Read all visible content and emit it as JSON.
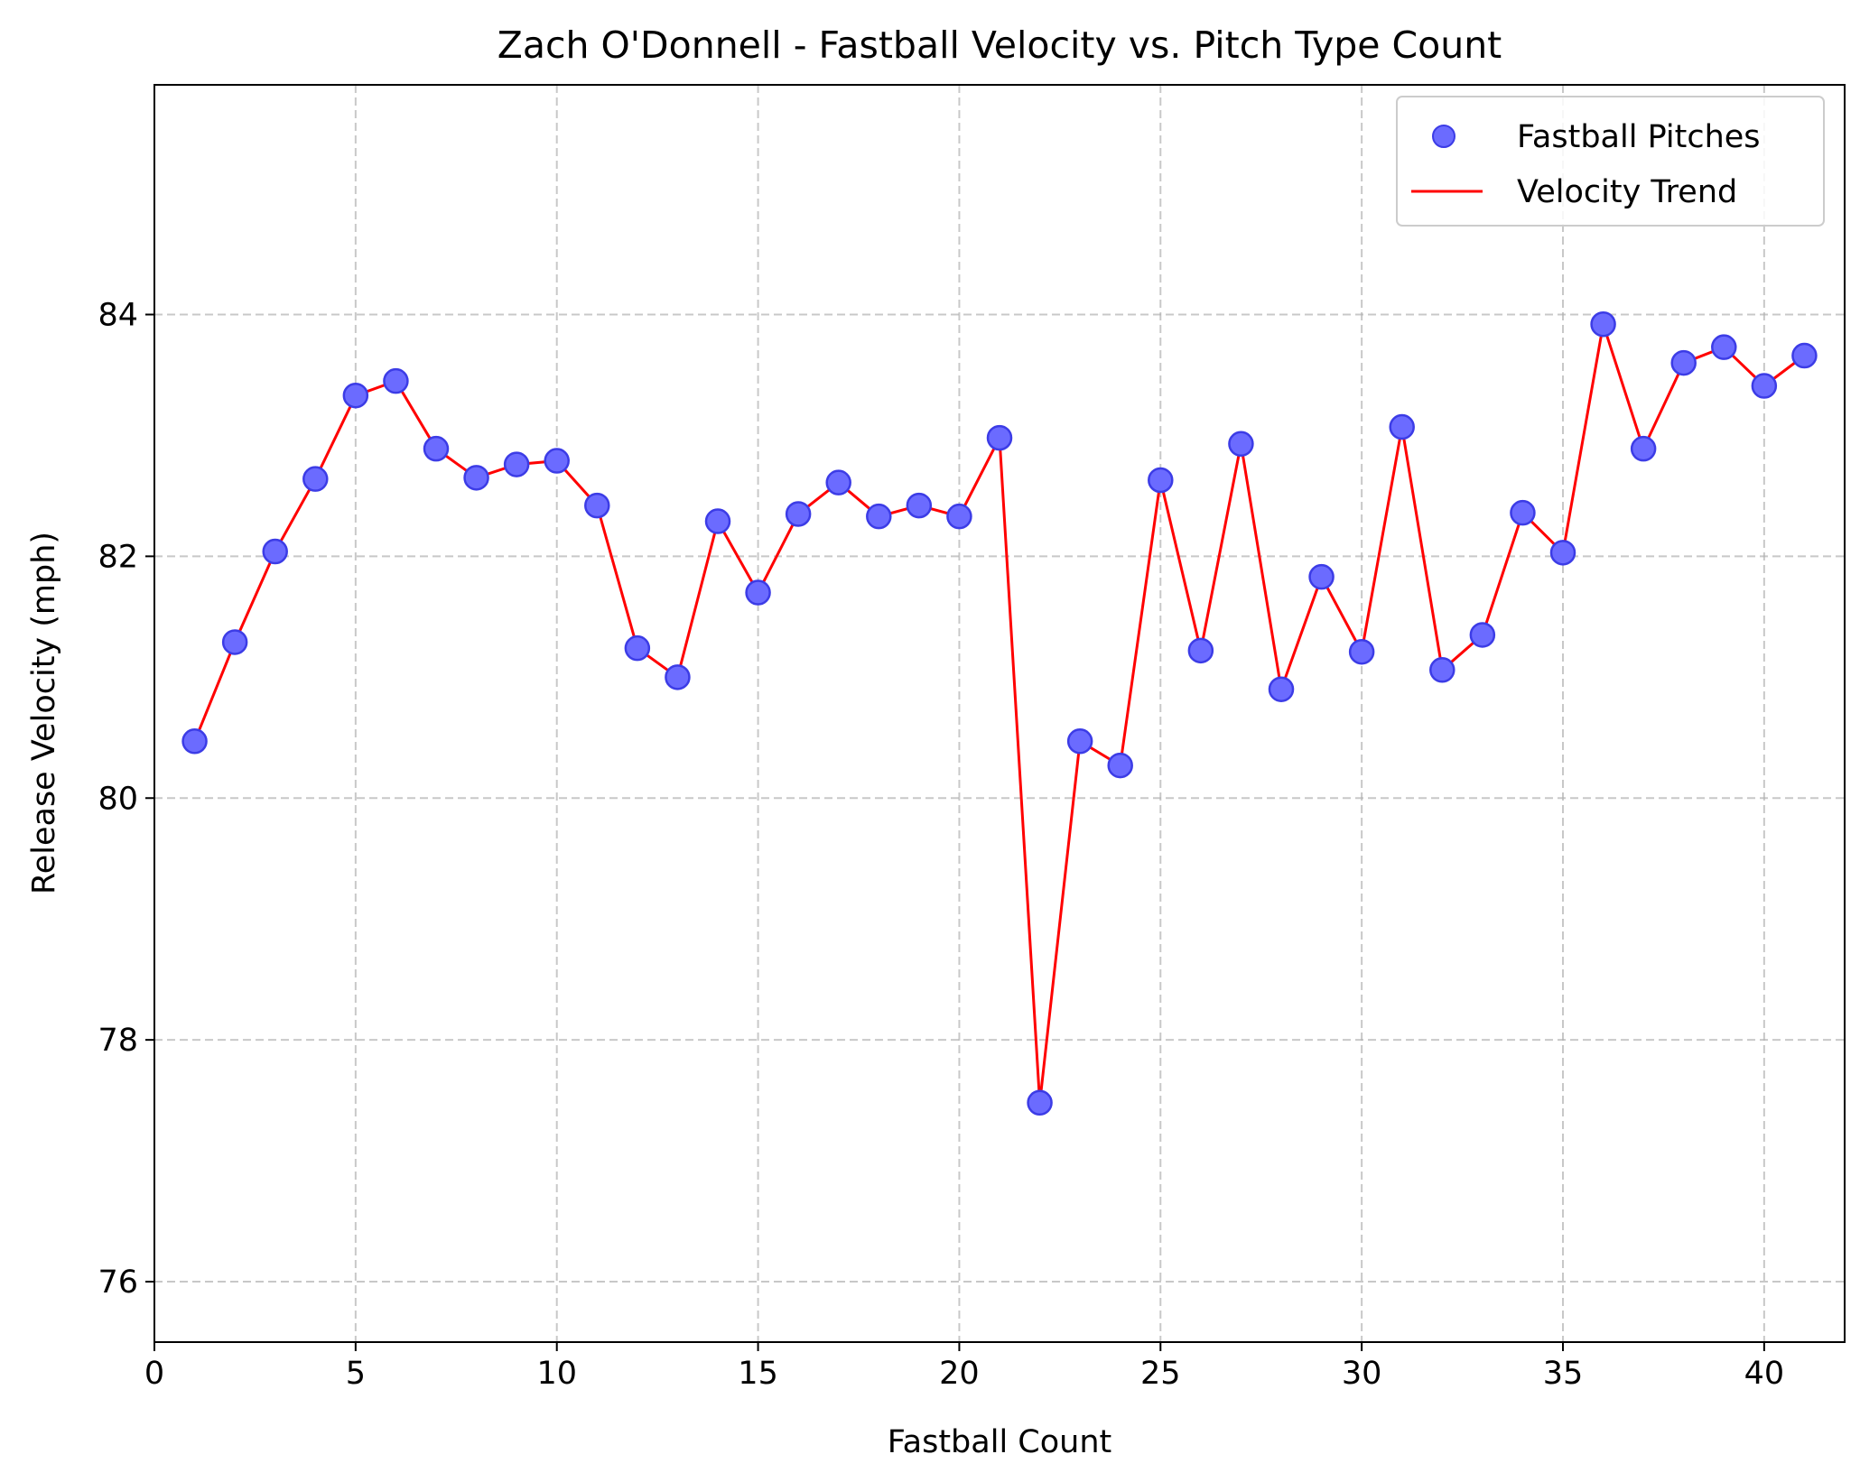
{
  "chart_data": {
    "type": "scatter",
    "title": "Zach O'Donnell - Fastball Velocity vs. Pitch Type Count",
    "xlabel": "Fastball Count",
    "ylabel": "Release Velocity (mph)",
    "xlim": [
      0,
      42
    ],
    "ylim": [
      75.5,
      85.9
    ],
    "x_ticks": [
      0,
      5,
      10,
      15,
      20,
      25,
      30,
      35,
      40
    ],
    "y_ticks": [
      76,
      78,
      80,
      82,
      84
    ],
    "grid": true,
    "legend_position": "top-right",
    "series": [
      {
        "name": "Fastball Pitches",
        "kind": "scatter",
        "color": "#6b6bff",
        "edge_color": "#3c3ce6",
        "x": [
          1,
          2,
          3,
          4,
          5,
          6,
          7,
          8,
          9,
          10,
          11,
          12,
          13,
          14,
          15,
          16,
          17,
          18,
          19,
          20,
          21,
          22,
          23,
          24,
          25,
          26,
          27,
          28,
          29,
          30,
          31,
          32,
          33,
          34,
          35,
          36,
          37,
          38,
          39,
          40,
          41
        ],
        "y": [
          80.47,
          81.29,
          82.04,
          82.64,
          83.33,
          83.45,
          82.89,
          82.65,
          82.76,
          82.79,
          82.42,
          81.24,
          81.0,
          82.29,
          81.7,
          82.35,
          82.61,
          82.33,
          82.42,
          82.33,
          82.98,
          77.48,
          80.47,
          80.27,
          82.63,
          81.22,
          82.93,
          80.9,
          81.83,
          81.21,
          83.07,
          81.06,
          81.35,
          82.36,
          82.03,
          83.92,
          82.89,
          83.6,
          83.73,
          83.41,
          83.66
        ]
      },
      {
        "name": "Velocity Trend",
        "kind": "line",
        "color": "#ff0000",
        "x": [
          1,
          2,
          3,
          4,
          5,
          6,
          7,
          8,
          9,
          10,
          11,
          12,
          13,
          14,
          15,
          16,
          17,
          18,
          19,
          20,
          21,
          22,
          23,
          24,
          25,
          26,
          27,
          28,
          29,
          30,
          31,
          32,
          33,
          34,
          35,
          36,
          37,
          38,
          39,
          40,
          41
        ],
        "y": [
          80.47,
          81.29,
          82.04,
          82.64,
          83.33,
          83.45,
          82.89,
          82.65,
          82.76,
          82.79,
          82.42,
          81.24,
          81.0,
          82.29,
          81.7,
          82.35,
          82.61,
          82.33,
          82.42,
          82.33,
          82.98,
          77.48,
          80.47,
          80.27,
          82.63,
          81.22,
          82.93,
          80.9,
          81.83,
          81.21,
          83.07,
          81.06,
          81.35,
          82.36,
          82.03,
          83.92,
          82.89,
          83.6,
          83.73,
          83.41,
          83.66
        ]
      }
    ]
  }
}
